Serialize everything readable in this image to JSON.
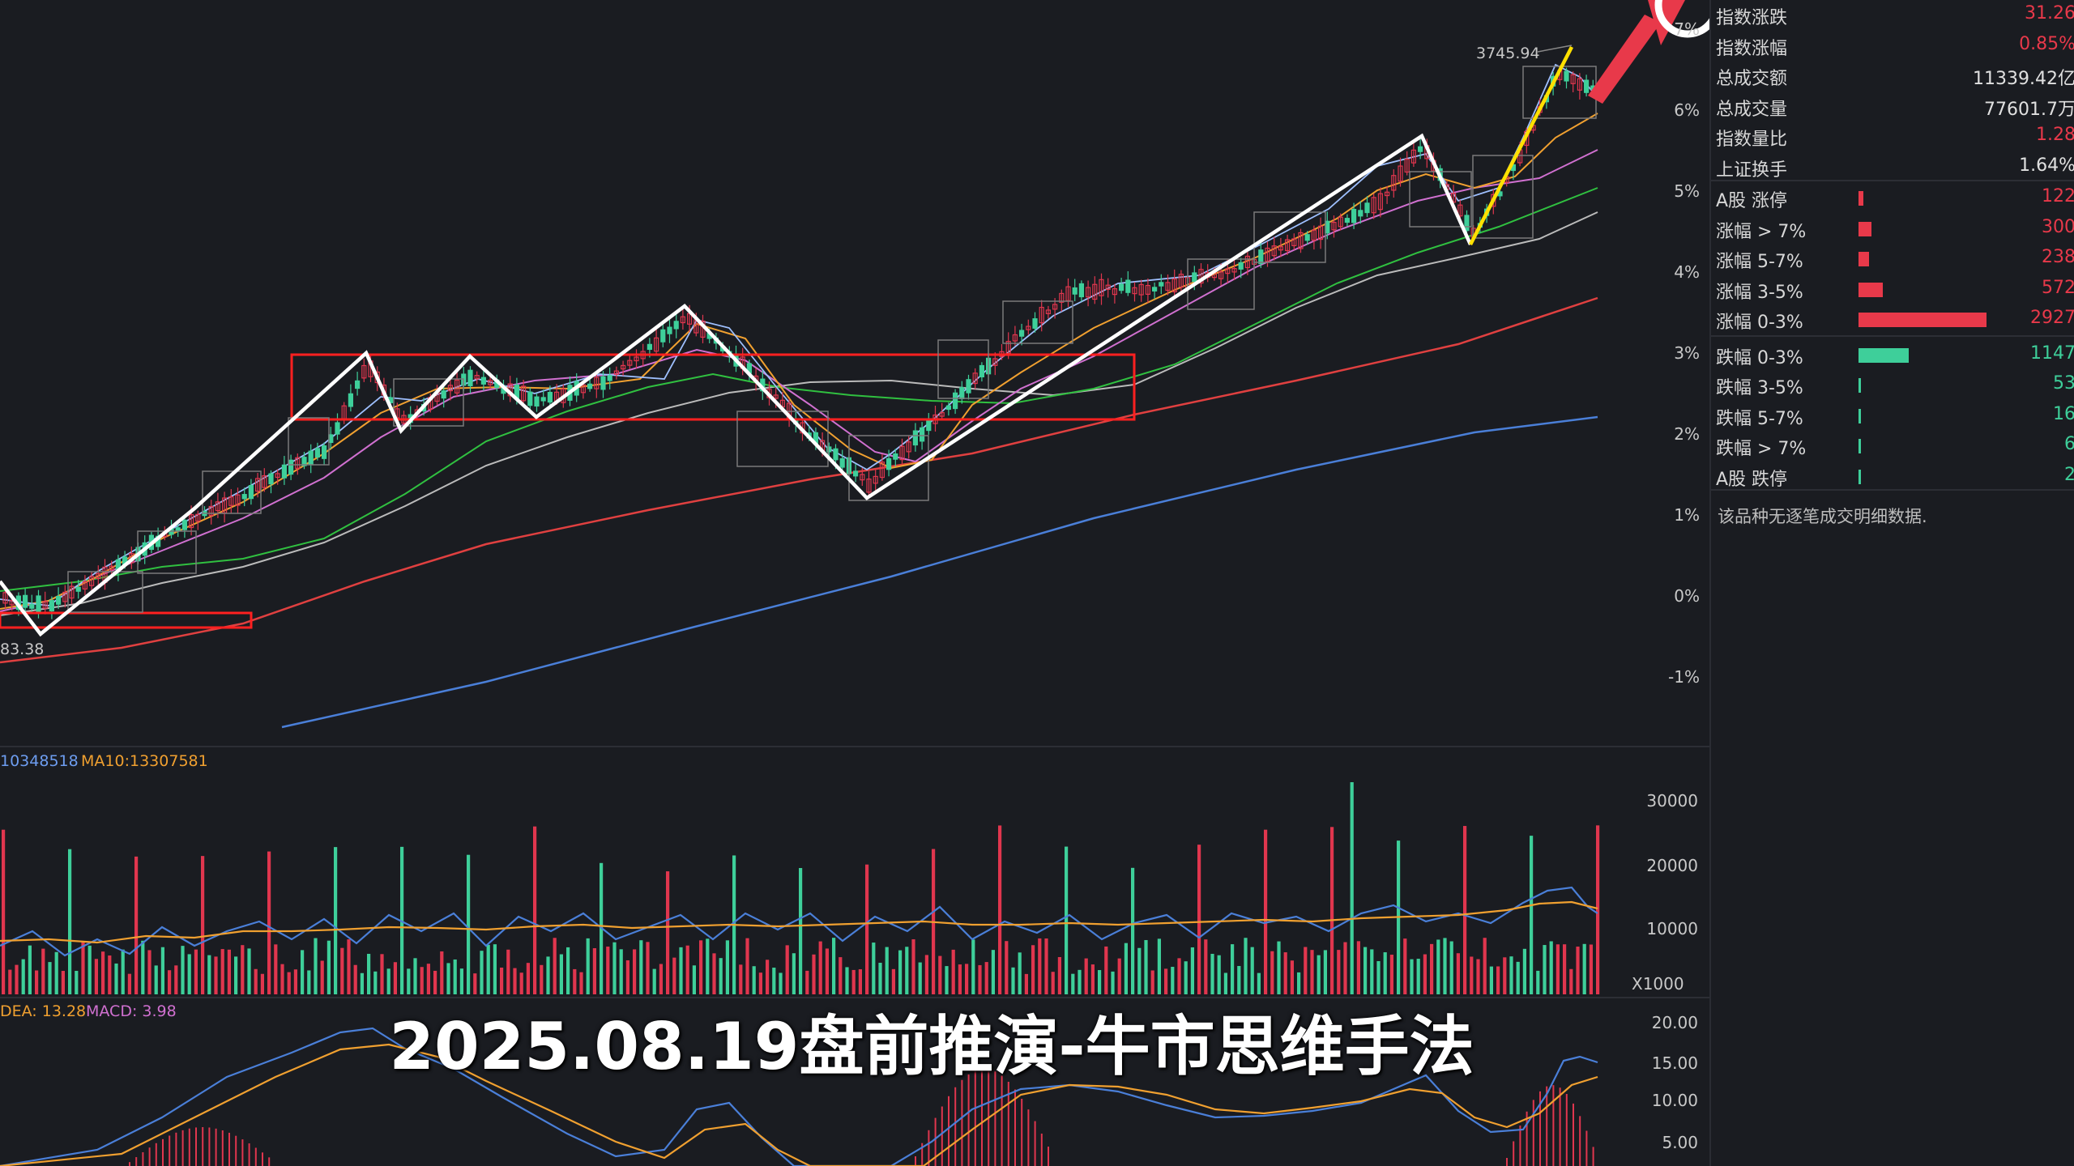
{
  "colors": {
    "up": "#e0364e",
    "down": "#3ecf9a",
    "ma5": "#ffffff",
    "ma10": "#f0a030",
    "ma20": "#d070d0",
    "ma30": "#30c040",
    "ma60": "#bbbbbb",
    "ma120": "#e04040",
    "ma250": "#4a7fd8",
    "bg": "#1a1c21",
    "zone": "#ff2020",
    "zigzag": "#ffffff",
    "impulse": "#ffe000",
    "arrow_up": "#e8394a",
    "arrow_green": "#30b040"
  },
  "main_chart": {
    "high_label": "3745.94",
    "low_label": "83.38",
    "right_axis": [
      "7%",
      "6%",
      "5%",
      "4%",
      "3%",
      "2%",
      "1%",
      "0%",
      "-1%"
    ]
  },
  "volume_panel": {
    "header_vol": "10348518",
    "header_ma10_label": "MA10:",
    "header_ma10": "13307581",
    "axis": [
      "30000",
      "20000",
      "10000"
    ],
    "multiplier": "X1000"
  },
  "macd_panel": {
    "header_dea": "DEA: 13.28",
    "header_macd": "MACD: 3.98",
    "axis": [
      "20.00",
      "15.00",
      "10.00",
      "5.00"
    ]
  },
  "stats": {
    "rows": [
      {
        "label": "指数涨跌",
        "value": "31.26",
        "color": "#e8394a"
      },
      {
        "label": "指数涨幅",
        "value": "0.85%",
        "color": "#e8394a"
      },
      {
        "label": "总成交额",
        "value": "11339.42亿",
        "color": "#e0e0e0"
      },
      {
        "label": "总成交量",
        "value": "77601.7万",
        "color": "#e0e0e0"
      },
      {
        "label": "指数量比",
        "value": "1.28",
        "color": "#e8394a"
      },
      {
        "label": "上证换手",
        "value": "1.64%",
        "color": "#e0e0e0"
      }
    ],
    "breadth": [
      {
        "label": "A股 涨停",
        "value": "122",
        "color": "#e8394a",
        "bar": 0.04
      },
      {
        "label": "涨幅 > 7%",
        "value": "300",
        "color": "#e8394a",
        "bar": 0.1
      },
      {
        "label": "涨幅 5-7%",
        "value": "238",
        "color": "#e8394a",
        "bar": 0.08
      },
      {
        "label": "涨幅 3-5%",
        "value": "572",
        "color": "#e8394a",
        "bar": 0.19
      },
      {
        "label": "涨幅 0-3%",
        "value": "2927",
        "color": "#e8394a",
        "bar": 1.0
      },
      {
        "label": "跌幅 0-3%",
        "value": "1147",
        "color": "#3ecf9a",
        "bar": 0.39
      },
      {
        "label": "跌幅 3-5%",
        "value": "53",
        "color": "#3ecf9a",
        "bar": 0.018
      },
      {
        "label": "跌幅 5-7%",
        "value": "16",
        "color": "#3ecf9a",
        "bar": 0.01
      },
      {
        "label": "跌幅 > 7%",
        "value": "6",
        "color": "#3ecf9a",
        "bar": 0.01
      },
      {
        "label": "A股 跌停",
        "value": "2",
        "color": "#3ecf9a",
        "bar": 0.01
      }
    ],
    "note": "该品种无逐笔成交明细数据."
  },
  "caption": "2025.08.19盘前推演-牛市思维手法"
}
